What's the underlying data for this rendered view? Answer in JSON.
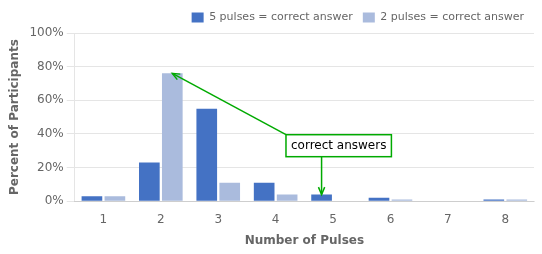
{
  "chart_data": {
    "type": "bar",
    "categories": [
      "1",
      "2",
      "3",
      "4",
      "5",
      "6",
      "7",
      "8"
    ],
    "series": [
      {
        "name": "5 pulses = correct answer",
        "color": "#4472C4",
        "values": [
          3,
          23,
          55,
          11,
          4,
          2,
          0,
          1
        ]
      },
      {
        "name": "2 pulses = correct answer",
        "color": "#AABBDD",
        "values": [
          3,
          76,
          11,
          4,
          0,
          1,
          0,
          1
        ]
      }
    ],
    "x_label": "Number of Pulses",
    "y_label": "Percent of Participants",
    "ylim": [
      0,
      100
    ],
    "yticks": [
      {
        "value": 0,
        "label": "0%"
      },
      {
        "value": 20,
        "label": "20%"
      },
      {
        "value": 40,
        "label": "40%"
      },
      {
        "value": 60,
        "label": "60%"
      },
      {
        "value": 80,
        "label": "80%"
      },
      {
        "value": 100,
        "label": "100%"
      }
    ],
    "grid": true,
    "legend": "upper right",
    "annotations": [
      {
        "text": "correct answers",
        "color": "#00AA00",
        "arrows": [
          {
            "series": "5 pulses = correct answer",
            "category": "5"
          },
          {
            "series": "2 pulses = correct answer",
            "category": "2"
          }
        ]
      }
    ]
  }
}
